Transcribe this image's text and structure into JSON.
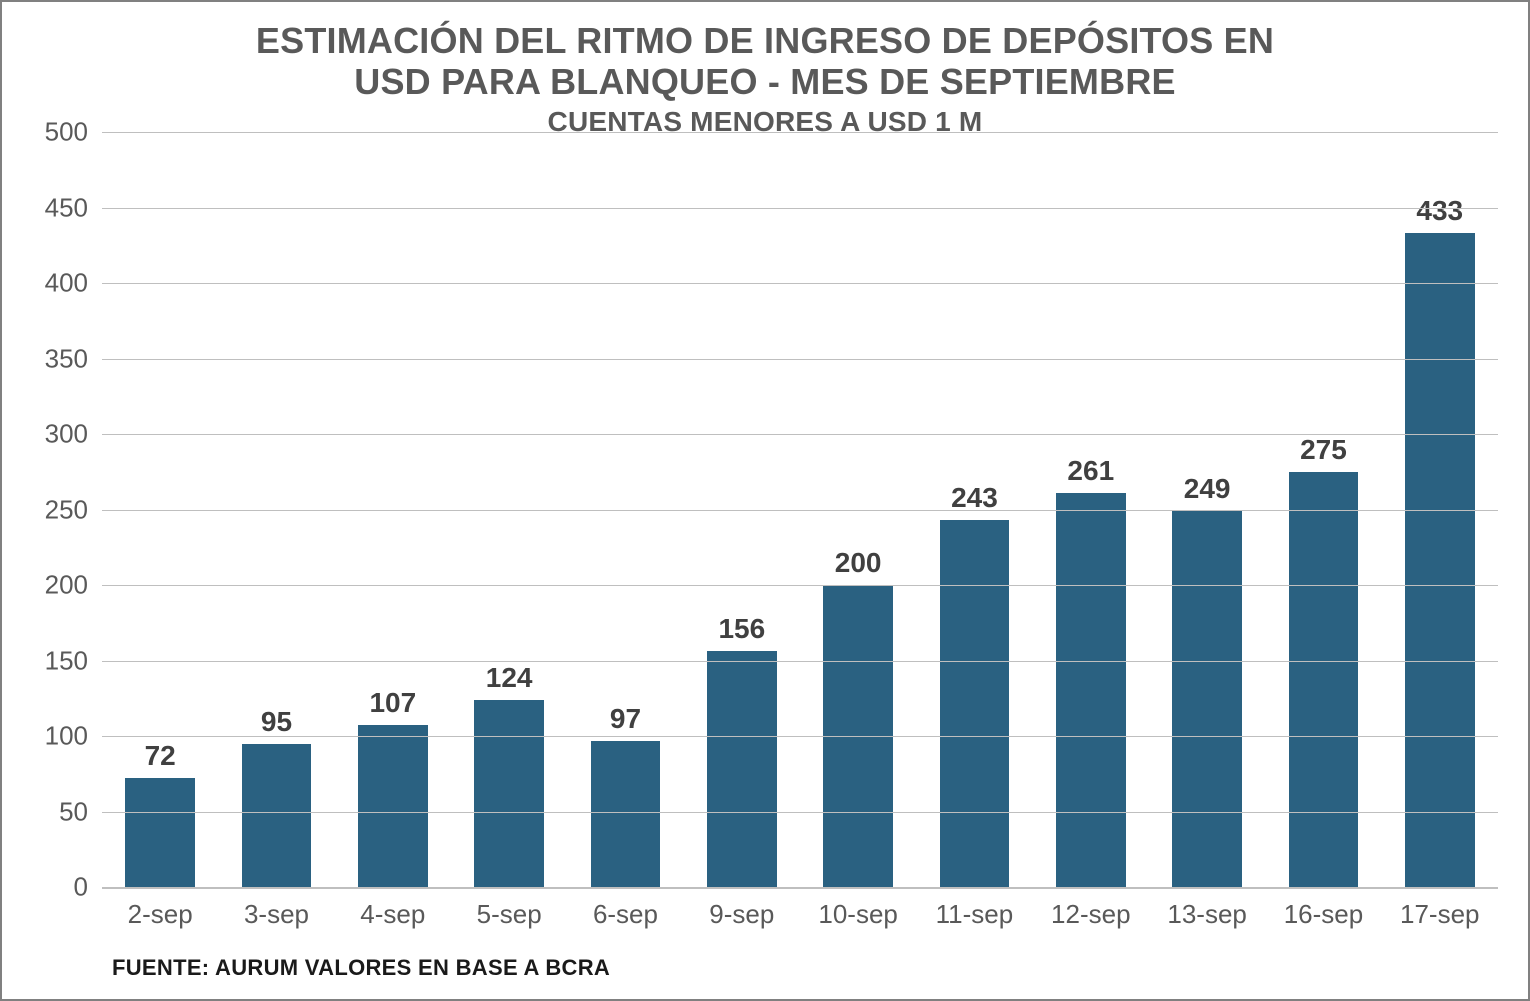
{
  "chart": {
    "type": "bar",
    "title_line1": "ESTIMACIÓN DEL RITMO DE INGRESO DE DEPÓSITOS EN",
    "title_line2": "USD PARA BLANQUEO - MES DE SEPTIEMBRE",
    "subtitle": "CUENTAS MENORES A USD 1 M",
    "title_fontsize": 36,
    "subtitle_fontsize": 28,
    "title_color": "#595959",
    "source": "FUENTE: AURUM VALORES EN BASE A BCRA",
    "source_fontsize": 22,
    "categories": [
      "2-sep",
      "3-sep",
      "4-sep",
      "5-sep",
      "6-sep",
      "9-sep",
      "10-sep",
      "11-sep",
      "12-sep",
      "13-sep",
      "16-sep",
      "17-sep"
    ],
    "values": [
      72,
      95,
      107,
      124,
      97,
      156,
      200,
      243,
      261,
      249,
      275,
      433
    ],
    "bar_color": "#2a6181",
    "bar_width": 0.6,
    "ylim": [
      0,
      500
    ],
    "ytick_step": 50,
    "yticks": [
      0,
      50,
      100,
      150,
      200,
      250,
      300,
      350,
      400,
      450,
      500
    ],
    "grid_color": "#bfbfbf",
    "axis_color": "#bfbfbf",
    "background_color": "#ffffff",
    "tick_label_color": "#595959",
    "tick_label_fontsize": 26,
    "value_label_color": "#404040",
    "value_label_fontsize": 28,
    "border_color": "#808080"
  }
}
